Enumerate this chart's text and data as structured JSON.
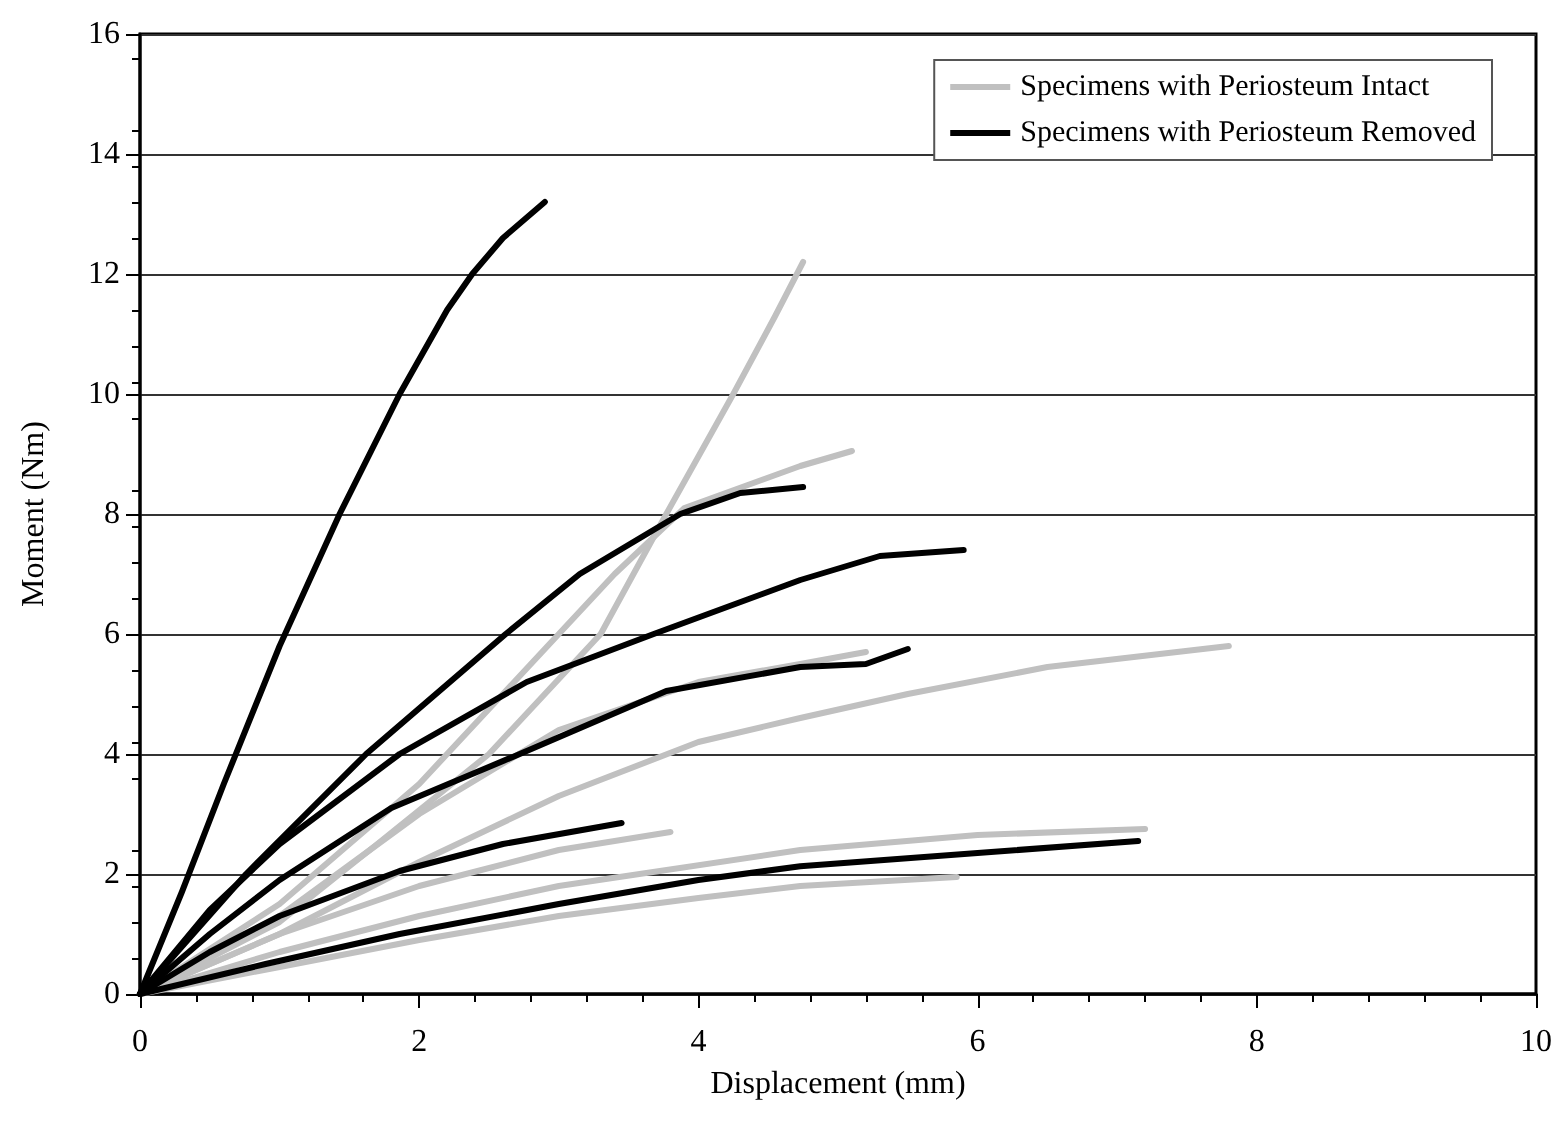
{
  "chart_data": {
    "type": "line",
    "xlabel": "Displacement (mm)",
    "ylabel": "Moment (Nm)",
    "xlim": [
      0,
      10
    ],
    "xticks": [
      0,
      2,
      4,
      6,
      8,
      10
    ],
    "ylim": [
      0,
      16
    ],
    "yticks": [
      0,
      2,
      4,
      6,
      8,
      10,
      12,
      14,
      16
    ],
    "grid": "y",
    "legend": "top right",
    "marker": "none",
    "line_style": "solid",
    "series": [
      {
        "name": "Specimens with Periosteum Intact",
        "color": "#c0c0c0",
        "x": [
          0,
          1,
          1.7,
          2.5,
          3.3,
          3.77,
          4.25,
          4.55,
          4.75
        ],
        "values": [
          0,
          1.2,
          2.5,
          4,
          6,
          8,
          10,
          11.3,
          12.2
        ]
      },
      {
        "color": "#c0c0c0",
        "x": [
          0,
          1,
          2,
          2.8,
          3.4,
          3.9,
          4.73,
          5.1
        ],
        "values": [
          0,
          1.5,
          3.5,
          5.5,
          7,
          8.1,
          8.8,
          9.05
        ]
      },
      {
        "color": "#c0c0c0",
        "x": [
          0,
          1,
          2,
          3,
          4,
          4.73,
          5.2
        ],
        "values": [
          0,
          1.3,
          3,
          4.4,
          5.2,
          5.5,
          5.7
        ]
      },
      {
        "color": "#c0c0c0",
        "x": [
          0,
          1,
          2,
          3,
          4,
          4.73,
          5.5,
          6.5,
          7.8
        ],
        "values": [
          0,
          1,
          2.2,
          3.3,
          4.2,
          4.6,
          5,
          5.45,
          5.8
        ]
      },
      {
        "color": "#c0c0c0",
        "x": [
          0,
          1,
          2,
          3,
          3.8
        ],
        "values": [
          0,
          1,
          1.8,
          2.4,
          2.7
        ]
      },
      {
        "color": "#c0c0c0",
        "x": [
          0,
          1,
          2,
          3,
          4.73,
          6,
          7.2
        ],
        "values": [
          0,
          0.7,
          1.3,
          1.8,
          2.4,
          2.65,
          2.75
        ]
      },
      {
        "color": "#c0c0c0",
        "x": [
          0,
          1,
          2,
          3,
          4,
          4.73,
          5.85
        ],
        "values": [
          0,
          0.45,
          0.9,
          1.3,
          1.6,
          1.8,
          1.95
        ]
      },
      {
        "name": "Specimens with Periosteum Removed",
        "color": "#000000",
        "x": [
          0,
          0.3,
          0.6,
          1,
          1.43,
          1.86,
          2.2,
          2.38,
          2.6,
          2.9
        ],
        "values": [
          0,
          1.7,
          3.5,
          5.8,
          8,
          10,
          11.4,
          12,
          12.6,
          13.2
        ]
      },
      {
        "color": "#000000",
        "x": [
          0,
          0.76,
          1.62,
          2.62,
          3.15,
          3.87,
          4.3,
          4.75
        ],
        "values": [
          0,
          2,
          4,
          6,
          7,
          8,
          8.35,
          8.45
        ]
      },
      {
        "color": "#000000",
        "x": [
          0,
          0.5,
          1,
          1.86,
          2.77,
          3.68,
          4.73,
          5.3,
          5.9
        ],
        "values": [
          0,
          1.4,
          2.5,
          4,
          5.2,
          6,
          6.9,
          7.3,
          7.4
        ]
      },
      {
        "color": "#000000",
        "x": [
          0,
          0.5,
          1,
          1.8,
          2.72,
          3.77,
          4.73,
          5.2,
          5.5
        ],
        "values": [
          0,
          1,
          1.9,
          3.1,
          4,
          5.05,
          5.45,
          5.5,
          5.75
        ]
      },
      {
        "color": "#000000",
        "x": [
          0,
          0.5,
          1,
          1.86,
          2.6,
          3.45
        ],
        "values": [
          0,
          0.7,
          1.3,
          2.05,
          2.5,
          2.85
        ]
      },
      {
        "color": "#000000",
        "x": [
          0,
          0.9,
          1.86,
          3,
          4,
          4.73,
          6,
          7.15
        ],
        "values": [
          0,
          0.5,
          1,
          1.5,
          1.9,
          2.13,
          2.35,
          2.55
        ]
      }
    ]
  }
}
